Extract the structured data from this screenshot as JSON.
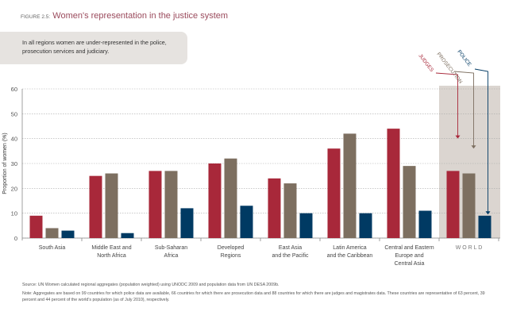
{
  "figure_label": "FIGURE 2.5:",
  "callout": "In all regions women are under-represented in the police, prosecution services and judiciary.",
  "source": "Source: UN Women calculated regional aggregates (population weighted) using UNODC 2009 and population data from UN DESA 2009b.",
  "note": "Note: Aggregates are based on 99 countries for which police data are available, 66 countries for which there are prosecution data and 88 countries for which there are judges and magistrates data. These countries are representative of 63 percent, 39 percent and 44 percent of the world's population (as of July 2010), respectively.",
  "chart_data": {
    "type": "bar",
    "title": "Women's representation in the justice system",
    "ylabel": "Proportion of women (%)",
    "xlabel": "",
    "ylim": [
      0,
      60
    ],
    "yticks": [
      0,
      10,
      20,
      30,
      40,
      50,
      60
    ],
    "grid": true,
    "categories": [
      "South Asia",
      "Middle East and North Africa",
      "Sub-Saharan Africa",
      "Developed Regions",
      "East Asia and the Pacific",
      "Latin America and the Caribbean",
      "Central and Eastern Europe and Central Asia",
      "WORLD"
    ],
    "category_lines": [
      [
        "South Asia"
      ],
      [
        "Middle East and",
        "North Africa"
      ],
      [
        "Sub-Saharan",
        "Africa"
      ],
      [
        "Developed",
        "Regions"
      ],
      [
        "East Asia",
        "and the Pacific"
      ],
      [
        "Latin America",
        "and the Caribbean"
      ],
      [
        "Central and Eastern",
        "Europe and",
        "Central Asia"
      ],
      [
        "W O R L D"
      ]
    ],
    "series": [
      {
        "name": "JUDGES",
        "color": "#a8283a",
        "values": [
          9,
          25,
          27,
          30,
          24,
          36,
          44,
          27
        ]
      },
      {
        "name": "PROSECUTION",
        "color": "#7d6f60",
        "values": [
          4,
          26,
          27,
          32,
          22,
          42,
          29,
          26
        ]
      },
      {
        "name": "POLICE",
        "color": "#003a63",
        "values": [
          3,
          2,
          12,
          13,
          10,
          10,
          11,
          9
        ]
      }
    ],
    "highlight_category": "WORLD",
    "highlight_color": "#dbd5d0"
  }
}
